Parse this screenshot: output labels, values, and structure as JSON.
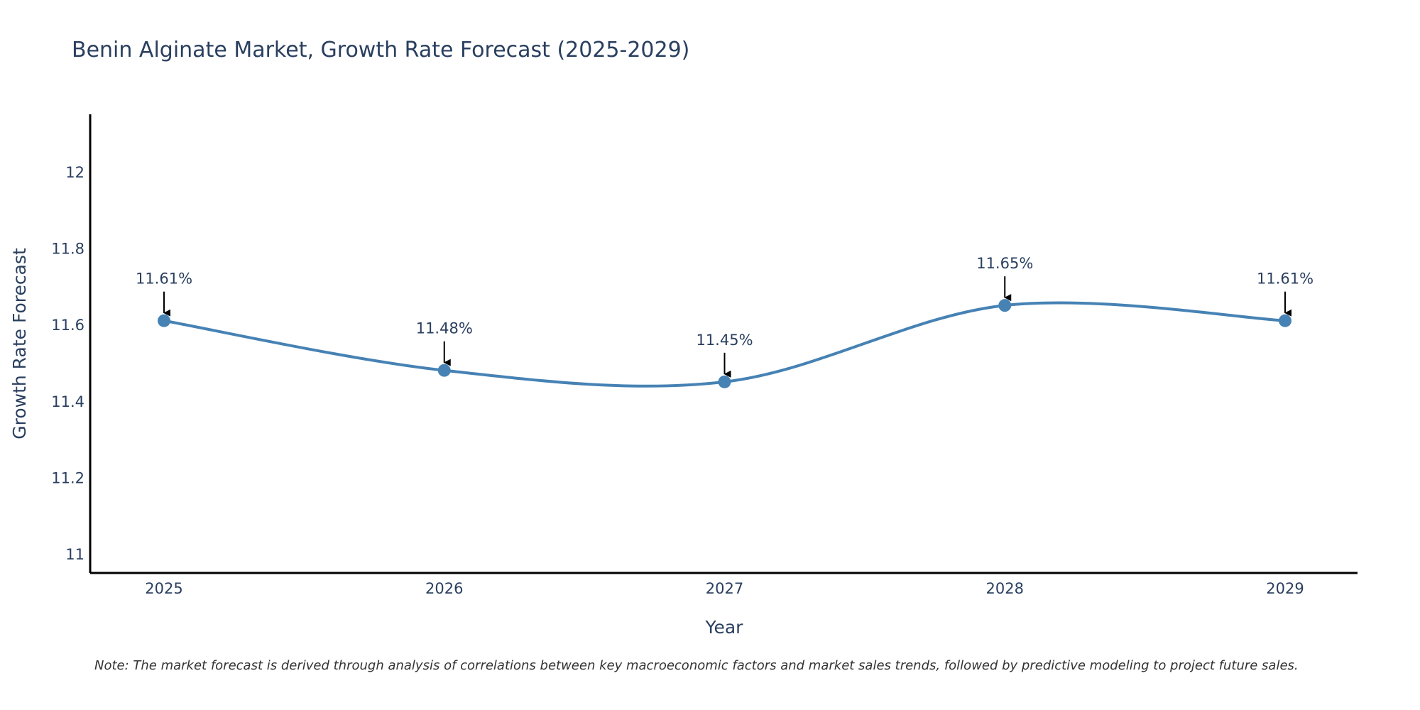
{
  "chart_data": {
    "type": "line",
    "title": "Benin Alginate Market, Growth Rate Forecast (2025-2029)",
    "xlabel": "Year",
    "ylabel": "Growth Rate Forecast",
    "categories": [
      "2025",
      "2026",
      "2027",
      "2028",
      "2029"
    ],
    "values": [
      11.61,
      11.48,
      11.45,
      11.65,
      11.61
    ],
    "data_labels": [
      "11.61%",
      "11.48%",
      "11.45%",
      "11.65%",
      "11.61%"
    ],
    "y_ticks": [
      11,
      11.2,
      11.4,
      11.6,
      11.8,
      12
    ],
    "y_tick_labels": [
      "11",
      "11.2",
      "11.4",
      "11.6",
      "11.8",
      "12"
    ],
    "ylim": [
      10.95,
      12.15
    ],
    "grid": false,
    "line_shape": "spline",
    "series_color": "#4682b4",
    "annotation_arrow_color": "#000000",
    "note": "Note: The market forecast is derived through analysis of correlations between key macroeconomic factors and market sales trends, followed by predictive modeling to project future sales."
  }
}
